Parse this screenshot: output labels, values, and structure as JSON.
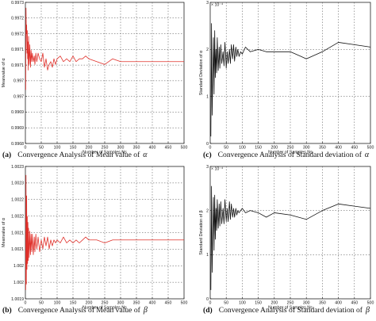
{
  "chart_data": [
    {
      "type": "line",
      "panel": "a",
      "caption": {
        "letter": "(a)",
        "text": "Convergence Analysis of Mean value of",
        "symbol": "α"
      },
      "xlabel": "Number of Samples,Ns",
      "ylabel": "Meanvalue of α",
      "xlim": [
        0,
        500
      ],
      "ylim": [
        0.9968,
        0.9973
      ],
      "xticks": [
        "0",
        "50",
        "100",
        "150",
        "200",
        "250",
        "300",
        "350",
        "400",
        "450",
        "500"
      ],
      "yticks": [
        "0.9968",
        "0.9969",
        "0.9969",
        "0.997",
        "0.997",
        "0.9971",
        "0.9971",
        "0.9972",
        "0.9972",
        "0.9973"
      ],
      "exponent": "",
      "grid": true,
      "color": "#e0302a",
      "series": [
        {
          "x": [
            1,
            2,
            3,
            4,
            5,
            6,
            7,
            8,
            9,
            10,
            12,
            14,
            16,
            18,
            20,
            22,
            25,
            28,
            30,
            33,
            36,
            40,
            45,
            50,
            55,
            60,
            65,
            70,
            75,
            80,
            85,
            90,
            95,
            100,
            110,
            120,
            130,
            140,
            150,
            160,
            170,
            180,
            190,
            200,
            225,
            250,
            275,
            300,
            350,
            400,
            450,
            500
          ],
          "y": [
            0.99699,
            0.99728,
            0.99719,
            0.99722,
            0.99712,
            0.9972,
            0.9971,
            0.99716,
            0.99706,
            0.99718,
            0.99708,
            0.99715,
            0.99707,
            0.99713,
            0.99709,
            0.99712,
            0.99709,
            0.99711,
            0.99708,
            0.99712,
            0.99709,
            0.99712,
            0.9971,
            0.99709,
            0.99712,
            0.99707,
            0.9971,
            0.99706,
            0.99708,
            0.99709,
            0.99707,
            0.9971,
            0.99708,
            0.9971,
            0.99711,
            0.99709,
            0.9971,
            0.99709,
            0.99711,
            0.99709,
            0.9971,
            0.9971,
            0.99711,
            0.9971,
            0.99709,
            0.99708,
            0.9971,
            0.99709,
            0.99709,
            0.99709,
            0.99709,
            0.99709
          ]
        }
      ]
    },
    {
      "type": "line",
      "panel": "c",
      "caption": {
        "letter": "(c)",
        "text": "Convergence Analysis of Standard deviation of",
        "symbol": "α"
      },
      "xlabel": "Number of Samples,Ns",
      "ylabel": "Standard Deviation of α",
      "xlim": [
        0,
        500
      ],
      "ylim": [
        0,
        3
      ],
      "xticks": [
        "0",
        "50",
        "100",
        "150",
        "200",
        "250",
        "300",
        "350",
        "400",
        "450",
        "500"
      ],
      "yticks": [
        "0",
        "1",
        "2",
        "3"
      ],
      "exponent": "× 10⁻⁴",
      "grid": true,
      "color": "#111111",
      "series": [
        {
          "x": [
            2,
            4,
            6,
            8,
            10,
            12,
            14,
            16,
            18,
            20,
            22,
            25,
            28,
            30,
            33,
            36,
            40,
            43,
            46,
            50,
            53,
            56,
            60,
            63,
            66,
            70,
            73,
            76,
            80,
            83,
            86,
            90,
            95,
            100,
            110,
            125,
            150,
            175,
            200,
            250,
            300,
            350,
            400,
            450,
            500
          ],
          "y": [
            0.15,
            2.55,
            0.6,
            1.5,
            2.25,
            1.05,
            2.4,
            1.4,
            2.0,
            1.5,
            2.25,
            1.55,
            2.05,
            1.6,
            2.1,
            1.7,
            1.95,
            1.65,
            2.15,
            1.6,
            1.95,
            1.7,
            2.0,
            1.7,
            2.1,
            1.8,
            2.1,
            1.75,
            2.05,
            1.85,
            2.0,
            1.85,
            1.95,
            1.9,
            2.05,
            1.95,
            2.0,
            1.95,
            1.95,
            1.95,
            1.8,
            1.95,
            2.15,
            2.1,
            2.05
          ]
        }
      ]
    },
    {
      "type": "line",
      "panel": "b",
      "caption": {
        "letter": "(b)",
        "text": "Convergence Analysis of Mean value of",
        "symbol": "β"
      },
      "xlabel": "Number of Samples,Ns",
      "ylabel": "Meanvalue of α",
      "xlim": [
        0,
        500
      ],
      "ylim": [
        1.0019,
        1.00235
      ],
      "xticks": [
        "0",
        "50",
        "100",
        "150",
        "200",
        "250",
        "300",
        "350",
        "400",
        "450",
        "500"
      ],
      "yticks": [
        "1.0019",
        "1.002",
        "1.002",
        "1.0021",
        "1.0021",
        "1.0022",
        "1.0022",
        "1.0023",
        "1.0023"
      ],
      "exponent": "",
      "grid": true,
      "color": "#e0302a",
      "series": [
        {
          "x": [
            1,
            2,
            3,
            4,
            5,
            6,
            7,
            8,
            9,
            10,
            12,
            14,
            16,
            18,
            20,
            22,
            25,
            28,
            30,
            33,
            36,
            40,
            45,
            50,
            55,
            60,
            65,
            70,
            75,
            80,
            85,
            90,
            95,
            100,
            110,
            120,
            130,
            140,
            150,
            160,
            170,
            180,
            190,
            200,
            225,
            250,
            275,
            300,
            350,
            400,
            450,
            500
          ],
          "y": [
            1.00193,
            1.00232,
            1.00195,
            1.00225,
            1.002,
            1.00218,
            1.00202,
            1.00216,
            1.00203,
            1.00214,
            1.00204,
            1.00213,
            1.00205,
            1.00212,
            1.00206,
            1.00212,
            1.00205,
            1.00211,
            1.00206,
            1.00212,
            1.00207,
            1.00211,
            1.00206,
            1.0021,
            1.00207,
            1.00211,
            1.00208,
            1.00211,
            1.00207,
            1.0021,
            1.00208,
            1.0021,
            1.00209,
            1.0021,
            1.00209,
            1.00211,
            1.00209,
            1.0021,
            1.00209,
            1.0021,
            1.00209,
            1.0021,
            1.00211,
            1.0021,
            1.0021,
            1.00209,
            1.0021,
            1.0021,
            1.0021,
            1.0021,
            1.0021,
            1.0021
          ]
        }
      ]
    },
    {
      "type": "line",
      "panel": "d",
      "caption": {
        "letter": "(d)",
        "text": "Convergence Analysis of Standard deviation of",
        "symbol": "β"
      },
      "xlabel": "Number of Samples,Ns",
      "ylabel": "Standard Deviation of β",
      "xlim": [
        0,
        500
      ],
      "ylim": [
        0,
        3
      ],
      "xticks": [
        "0",
        "50",
        "100",
        "150",
        "200",
        "250",
        "300",
        "350",
        "400",
        "450",
        "500"
      ],
      "yticks": [
        "0",
        "1",
        "2",
        "3"
      ],
      "exponent": "× 10⁻⁴",
      "grid": true,
      "color": "#111111",
      "series": [
        {
          "x": [
            2,
            4,
            6,
            8,
            10,
            12,
            14,
            16,
            18,
            20,
            22,
            25,
            28,
            30,
            33,
            36,
            40,
            43,
            46,
            50,
            53,
            56,
            60,
            63,
            66,
            70,
            73,
            76,
            80,
            83,
            86,
            90,
            95,
            100,
            110,
            125,
            150,
            175,
            200,
            250,
            300,
            350,
            400,
            450,
            500
          ],
          "y": [
            0.2,
            2.55,
            0.6,
            1.6,
            2.3,
            1.1,
            2.35,
            1.35,
            2.05,
            1.55,
            2.25,
            1.6,
            2.15,
            1.65,
            2.2,
            1.7,
            2.05,
            1.7,
            2.25,
            1.75,
            2.05,
            1.75,
            2.2,
            1.8,
            2.15,
            1.85,
            2.05,
            1.85,
            2.05,
            1.9,
            2.0,
            1.95,
            2.0,
            2.05,
            1.95,
            2.0,
            1.95,
            1.85,
            1.95,
            1.9,
            1.8,
            2.0,
            2.15,
            2.1,
            2.05
          ]
        }
      ]
    }
  ]
}
